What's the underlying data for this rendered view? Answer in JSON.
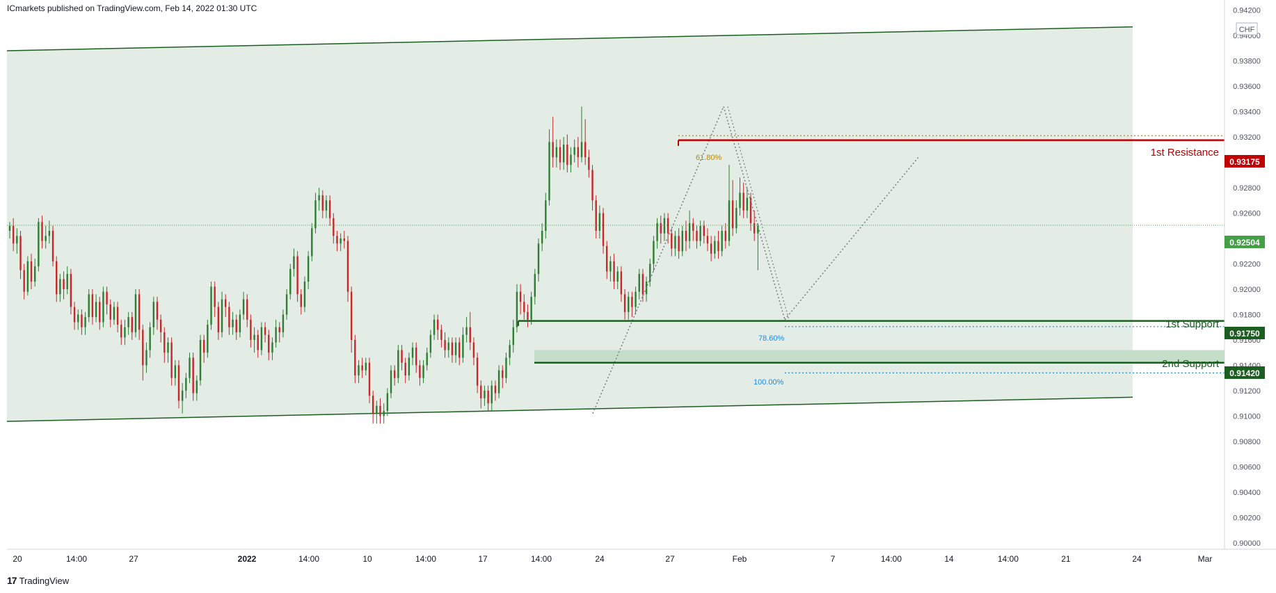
{
  "header": {
    "publisher": "ICmarkets published on TradingView.com, Feb 14, 2022 01:30 UTC"
  },
  "brand": {
    "name": "TradingView"
  },
  "colors": {
    "up": "#2e7d32",
    "down": "#c62828",
    "channel_fill": "#e3ece5",
    "channel_line": "#1b5e20",
    "resistance": "#c00000",
    "support": "#1b5e20",
    "fib": "#1e88e5",
    "fib_gold": "#b8860b"
  },
  "chart_data": {
    "type": "candlestick",
    "currency": "CHF",
    "ylim": [
      0.8995,
      0.9428
    ],
    "y_ticks": [
      "0.90000",
      "0.90200",
      "0.90400",
      "0.90600",
      "0.90800",
      "0.91000",
      "0.91200",
      "0.91400",
      "0.91600",
      "0.91800",
      "0.92000",
      "0.92200",
      "0.92400",
      "0.92600",
      "0.92800",
      "0.93000",
      "0.93200",
      "0.93400",
      "0.93600",
      "0.93800",
      "0.94000",
      "0.94200"
    ],
    "x_ticks": [
      "20",
      "14:00",
      "27",
      "2022",
      "14:00",
      "10",
      "14:00",
      "17",
      "14:00",
      "24",
      "27",
      "Feb",
      "7",
      "14:00",
      "14",
      "14:00",
      "21",
      "24",
      "Mar"
    ],
    "last_price": "0.92504",
    "levels": [
      {
        "label": "1st Resistance",
        "price": "0.93175",
        "kind": "resistance"
      },
      {
        "label": "1st Support",
        "price": "0.91750",
        "kind": "support"
      },
      {
        "label": "2nd Support",
        "price": "0.91420",
        "kind": "support"
      }
    ],
    "fib_labels": {
      "f618": "61.80%",
      "f786": "78.60%",
      "f100": "100.00%"
    },
    "candles": [
      [
        0.9246,
        0.925,
        0.924,
        0.9253
      ],
      [
        0.925,
        0.9236,
        0.923,
        0.9256
      ],
      [
        0.9236,
        0.9242,
        0.9228,
        0.9248
      ],
      [
        0.9242,
        0.9215,
        0.9208,
        0.9246
      ],
      [
        0.9215,
        0.9198,
        0.9192,
        0.922
      ],
      [
        0.9198,
        0.9222,
        0.9195,
        0.9226
      ],
      [
        0.9222,
        0.9206,
        0.92,
        0.9228
      ],
      [
        0.9206,
        0.9218,
        0.9202,
        0.9224
      ],
      [
        0.9218,
        0.9253,
        0.9214,
        0.9256
      ],
      [
        0.9253,
        0.9238,
        0.9232,
        0.9258
      ],
      [
        0.9238,
        0.9242,
        0.9232,
        0.925
      ],
      [
        0.9242,
        0.9246,
        0.9236,
        0.9254
      ],
      [
        0.9246,
        0.9222,
        0.9218,
        0.925
      ],
      [
        0.9222,
        0.9196,
        0.919,
        0.9226
      ],
      [
        0.9196,
        0.9208,
        0.919,
        0.9212
      ],
      [
        0.9208,
        0.92,
        0.9192,
        0.9214
      ],
      [
        0.92,
        0.9212,
        0.9196,
        0.9218
      ],
      [
        0.9212,
        0.9186,
        0.918,
        0.9216
      ],
      [
        0.9186,
        0.9174,
        0.9168,
        0.919
      ],
      [
        0.9174,
        0.918,
        0.9168,
        0.9184
      ],
      [
        0.918,
        0.917,
        0.9164,
        0.9184
      ],
      [
        0.917,
        0.9178,
        0.9164,
        0.9182
      ],
      [
        0.9178,
        0.9196,
        0.9174,
        0.92
      ],
      [
        0.9196,
        0.9178,
        0.9172,
        0.92
      ],
      [
        0.9178,
        0.919,
        0.9174,
        0.9196
      ],
      [
        0.919,
        0.9174,
        0.9168,
        0.9194
      ],
      [
        0.9174,
        0.9198,
        0.917,
        0.9202
      ],
      [
        0.9198,
        0.9188,
        0.918,
        0.9202
      ],
      [
        0.9188,
        0.9176,
        0.917,
        0.9192
      ],
      [
        0.9176,
        0.9186,
        0.9172,
        0.919
      ],
      [
        0.9186,
        0.9172,
        0.9166,
        0.919
      ],
      [
        0.9172,
        0.9162,
        0.9156,
        0.9176
      ],
      [
        0.9162,
        0.917,
        0.9156,
        0.9176
      ],
      [
        0.917,
        0.9178,
        0.9164,
        0.9182
      ],
      [
        0.9178,
        0.9166,
        0.916,
        0.9182
      ],
      [
        0.9166,
        0.9196,
        0.9162,
        0.92
      ],
      [
        0.9196,
        0.9168,
        0.916,
        0.92
      ],
      [
        0.9168,
        0.914,
        0.9128,
        0.9172
      ],
      [
        0.914,
        0.9152,
        0.9134,
        0.9158
      ],
      [
        0.9152,
        0.917,
        0.9146,
        0.9174
      ],
      [
        0.917,
        0.919,
        0.9164,
        0.9194
      ],
      [
        0.919,
        0.9176,
        0.9168,
        0.9194
      ],
      [
        0.9176,
        0.9166,
        0.9158,
        0.918
      ],
      [
        0.9166,
        0.915,
        0.9142,
        0.917
      ],
      [
        0.915,
        0.9158,
        0.9142,
        0.9162
      ],
      [
        0.9158,
        0.913,
        0.9124,
        0.9162
      ],
      [
        0.913,
        0.914,
        0.9124,
        0.9144
      ],
      [
        0.914,
        0.9112,
        0.9106,
        0.9144
      ],
      [
        0.9112,
        0.912,
        0.9102,
        0.9126
      ],
      [
        0.912,
        0.913,
        0.9114,
        0.9134
      ],
      [
        0.913,
        0.9146,
        0.9126,
        0.915
      ],
      [
        0.9146,
        0.9118,
        0.9112,
        0.915
      ],
      [
        0.9118,
        0.9128,
        0.9112,
        0.9132
      ],
      [
        0.9128,
        0.916,
        0.9124,
        0.9164
      ],
      [
        0.916,
        0.915,
        0.9142,
        0.9164
      ],
      [
        0.915,
        0.9172,
        0.9146,
        0.9176
      ],
      [
        0.9172,
        0.9202,
        0.9168,
        0.9206
      ],
      [
        0.9202,
        0.9186,
        0.9178,
        0.9206
      ],
      [
        0.9186,
        0.9166,
        0.916,
        0.919
      ],
      [
        0.9166,
        0.9192,
        0.9162,
        0.9198
      ],
      [
        0.9192,
        0.9186,
        0.9178,
        0.9196
      ],
      [
        0.9186,
        0.917,
        0.9164,
        0.919
      ],
      [
        0.917,
        0.9176,
        0.9164,
        0.9182
      ],
      [
        0.9176,
        0.9166,
        0.916,
        0.918
      ],
      [
        0.9166,
        0.918,
        0.9162,
        0.9184
      ],
      [
        0.918,
        0.9192,
        0.9176,
        0.9198
      ],
      [
        0.9192,
        0.9176,
        0.917,
        0.9196
      ],
      [
        0.9176,
        0.916,
        0.9154,
        0.918
      ],
      [
        0.916,
        0.9164,
        0.915,
        0.917
      ],
      [
        0.9164,
        0.9152,
        0.9146,
        0.9168
      ],
      [
        0.9152,
        0.917,
        0.9148,
        0.9174
      ],
      [
        0.917,
        0.9164,
        0.9158,
        0.9174
      ],
      [
        0.9164,
        0.915,
        0.9144,
        0.9168
      ],
      [
        0.915,
        0.9158,
        0.9144,
        0.9162
      ],
      [
        0.9158,
        0.917,
        0.9154,
        0.9176
      ],
      [
        0.917,
        0.9166,
        0.9158,
        0.9174
      ],
      [
        0.9166,
        0.918,
        0.9162,
        0.9184
      ],
      [
        0.918,
        0.9196,
        0.9176,
        0.92
      ],
      [
        0.9196,
        0.9216,
        0.9192,
        0.922
      ],
      [
        0.9216,
        0.9226,
        0.921,
        0.9232
      ],
      [
        0.9226,
        0.9196,
        0.919,
        0.923
      ],
      [
        0.9196,
        0.9186,
        0.918,
        0.92
      ],
      [
        0.9186,
        0.9206,
        0.9182,
        0.921
      ],
      [
        0.9206,
        0.9226,
        0.92,
        0.923
      ],
      [
        0.9226,
        0.9248,
        0.9222,
        0.9252
      ],
      [
        0.9248,
        0.927,
        0.9244,
        0.9276
      ],
      [
        0.927,
        0.9274,
        0.9262,
        0.928
      ],
      [
        0.9274,
        0.9262,
        0.9256,
        0.9278
      ],
      [
        0.9262,
        0.927,
        0.9256,
        0.9274
      ],
      [
        0.927,
        0.9256,
        0.925,
        0.9274
      ],
      [
        0.9256,
        0.9242,
        0.9236,
        0.926
      ],
      [
        0.9242,
        0.9236,
        0.923,
        0.9246
      ],
      [
        0.9236,
        0.924,
        0.923,
        0.9244
      ],
      [
        0.924,
        0.9238,
        0.9232,
        0.9246
      ],
      [
        0.9238,
        0.9198,
        0.919,
        0.9242
      ],
      [
        0.9198,
        0.916,
        0.915,
        0.9202
      ],
      [
        0.916,
        0.9132,
        0.9126,
        0.9164
      ],
      [
        0.9132,
        0.914,
        0.9126,
        0.9144
      ],
      [
        0.914,
        0.9136,
        0.913,
        0.9146
      ],
      [
        0.9136,
        0.9142,
        0.9132,
        0.9146
      ],
      [
        0.9142,
        0.9116,
        0.911,
        0.9146
      ],
      [
        0.9116,
        0.9102,
        0.9094,
        0.912
      ],
      [
        0.9102,
        0.9108,
        0.9094,
        0.9112
      ],
      [
        0.9108,
        0.91,
        0.9094,
        0.9114
      ],
      [
        0.91,
        0.9104,
        0.9094,
        0.911
      ],
      [
        0.9104,
        0.9118,
        0.91,
        0.9122
      ],
      [
        0.9118,
        0.9136,
        0.9114,
        0.914
      ],
      [
        0.9136,
        0.913,
        0.9124,
        0.914
      ],
      [
        0.913,
        0.9152,
        0.9126,
        0.9156
      ],
      [
        0.9152,
        0.9142,
        0.9136,
        0.9156
      ],
      [
        0.9142,
        0.9132,
        0.9126,
        0.9146
      ],
      [
        0.9132,
        0.9146,
        0.9128,
        0.915
      ],
      [
        0.9146,
        0.9154,
        0.914,
        0.9158
      ],
      [
        0.9154,
        0.914,
        0.9134,
        0.9158
      ],
      [
        0.914,
        0.913,
        0.9124,
        0.9144
      ],
      [
        0.913,
        0.914,
        0.9126,
        0.9144
      ],
      [
        0.914,
        0.915,
        0.9136,
        0.9154
      ],
      [
        0.915,
        0.9164,
        0.9146,
        0.9168
      ],
      [
        0.9164,
        0.9176,
        0.916,
        0.918
      ],
      [
        0.9176,
        0.9168,
        0.916,
        0.918
      ],
      [
        0.9168,
        0.916,
        0.9154,
        0.9172
      ],
      [
        0.916,
        0.9152,
        0.9146,
        0.9166
      ],
      [
        0.9152,
        0.9158,
        0.9146,
        0.9162
      ],
      [
        0.9158,
        0.9148,
        0.9142,
        0.9162
      ],
      [
        0.9148,
        0.9158,
        0.9142,
        0.9162
      ],
      [
        0.9158,
        0.9146,
        0.914,
        0.9162
      ],
      [
        0.9146,
        0.9164,
        0.9142,
        0.917
      ],
      [
        0.9164,
        0.917,
        0.9158,
        0.9178
      ],
      [
        0.917,
        0.9158,
        0.9152,
        0.9182
      ],
      [
        0.9158,
        0.9146,
        0.914,
        0.9162
      ],
      [
        0.9146,
        0.9124,
        0.9118,
        0.915
      ],
      [
        0.9124,
        0.9114,
        0.9106,
        0.9128
      ],
      [
        0.9114,
        0.912,
        0.9108,
        0.9124
      ],
      [
        0.912,
        0.911,
        0.9104,
        0.9124
      ],
      [
        0.911,
        0.9124,
        0.9104,
        0.9128
      ],
      [
        0.9124,
        0.9118,
        0.9112,
        0.9128
      ],
      [
        0.9118,
        0.9136,
        0.9114,
        0.914
      ],
      [
        0.9136,
        0.913,
        0.9122,
        0.914
      ],
      [
        0.913,
        0.9146,
        0.9126,
        0.915
      ],
      [
        0.9146,
        0.9156,
        0.914,
        0.916
      ],
      [
        0.9156,
        0.917,
        0.915,
        0.9176
      ],
      [
        0.917,
        0.9198,
        0.9166,
        0.9204
      ],
      [
        0.9198,
        0.919,
        0.918,
        0.9204
      ],
      [
        0.919,
        0.9182,
        0.9176,
        0.9196
      ],
      [
        0.9182,
        0.9176,
        0.917,
        0.9188
      ],
      [
        0.9176,
        0.9194,
        0.9172,
        0.9198
      ],
      [
        0.9194,
        0.9212,
        0.9188,
        0.9216
      ],
      [
        0.9212,
        0.9236,
        0.9206,
        0.924
      ],
      [
        0.9236,
        0.9246,
        0.923,
        0.9252
      ],
      [
        0.9246,
        0.927,
        0.924,
        0.9276
      ],
      [
        0.927,
        0.9316,
        0.9266,
        0.9326
      ],
      [
        0.9316,
        0.9304,
        0.9296,
        0.9336
      ],
      [
        0.9304,
        0.9312,
        0.9296,
        0.9318
      ],
      [
        0.9312,
        0.93,
        0.9294,
        0.9318
      ],
      [
        0.93,
        0.9314,
        0.9294,
        0.932
      ],
      [
        0.9314,
        0.9298,
        0.9292,
        0.9322
      ],
      [
        0.9298,
        0.9306,
        0.9292,
        0.9312
      ],
      [
        0.9306,
        0.9312,
        0.93,
        0.9318
      ],
      [
        0.9312,
        0.9304,
        0.9296,
        0.932
      ],
      [
        0.9304,
        0.9316,
        0.93,
        0.9344
      ],
      [
        0.9316,
        0.9304,
        0.9298,
        0.9334
      ],
      [
        0.9304,
        0.9294,
        0.9288,
        0.931
      ],
      [
        0.9294,
        0.927,
        0.9262,
        0.9298
      ],
      [
        0.927,
        0.9246,
        0.924,
        0.9274
      ],
      [
        0.9246,
        0.926,
        0.924,
        0.9266
      ],
      [
        0.926,
        0.9234,
        0.9228,
        0.9264
      ],
      [
        0.9234,
        0.9214,
        0.9208,
        0.9238
      ],
      [
        0.9214,
        0.9222,
        0.9206,
        0.9226
      ],
      [
        0.9222,
        0.9206,
        0.92,
        0.9228
      ],
      [
        0.9206,
        0.9214,
        0.92,
        0.9218
      ],
      [
        0.9214,
        0.9196,
        0.919,
        0.9218
      ],
      [
        0.9196,
        0.9182,
        0.9176,
        0.92
      ],
      [
        0.9182,
        0.9194,
        0.9176,
        0.9198
      ],
      [
        0.9194,
        0.9186,
        0.9178,
        0.9198
      ],
      [
        0.9186,
        0.9198,
        0.918,
        0.9202
      ],
      [
        0.9198,
        0.9212,
        0.9192,
        0.9216
      ],
      [
        0.9212,
        0.9196,
        0.919,
        0.9216
      ],
      [
        0.9196,
        0.9206,
        0.919,
        0.921
      ],
      [
        0.9206,
        0.922,
        0.9202,
        0.9224
      ],
      [
        0.922,
        0.9238,
        0.9214,
        0.9242
      ],
      [
        0.9238,
        0.9252,
        0.9232,
        0.9256
      ],
      [
        0.9252,
        0.9244,
        0.9236,
        0.9258
      ],
      [
        0.9244,
        0.9256,
        0.9238,
        0.926
      ],
      [
        0.9256,
        0.9244,
        0.9236,
        0.926
      ],
      [
        0.9244,
        0.9232,
        0.9226,
        0.9248
      ],
      [
        0.9232,
        0.9242,
        0.9226,
        0.9246
      ],
      [
        0.9242,
        0.923,
        0.9224,
        0.9248
      ],
      [
        0.923,
        0.9246,
        0.9226,
        0.925
      ],
      [
        0.9246,
        0.9238,
        0.923,
        0.9254
      ],
      [
        0.9238,
        0.9252,
        0.9232,
        0.9262
      ],
      [
        0.9252,
        0.9246,
        0.9238,
        0.9256
      ],
      [
        0.9246,
        0.9238,
        0.9232,
        0.925
      ],
      [
        0.9238,
        0.925,
        0.9234,
        0.9254
      ],
      [
        0.925,
        0.9242,
        0.9236,
        0.9254
      ],
      [
        0.9242,
        0.9236,
        0.923,
        0.9248
      ],
      [
        0.9236,
        0.9228,
        0.9222,
        0.9242
      ],
      [
        0.9228,
        0.9238,
        0.9224,
        0.9242
      ],
      [
        0.9238,
        0.923,
        0.9224,
        0.9246
      ],
      [
        0.923,
        0.9246,
        0.9226,
        0.925
      ],
      [
        0.9246,
        0.9238,
        0.9232,
        0.9252
      ],
      [
        0.9238,
        0.927,
        0.9234,
        0.9298
      ],
      [
        0.927,
        0.9248,
        0.9242,
        0.9286
      ],
      [
        0.9248,
        0.9264,
        0.9244,
        0.927
      ],
      [
        0.9264,
        0.9276,
        0.9258,
        0.9288
      ],
      [
        0.9276,
        0.9262,
        0.9256,
        0.9284
      ],
      [
        0.9262,
        0.9272,
        0.9256,
        0.928
      ],
      [
        0.9272,
        0.9252,
        0.9246,
        0.9276
      ],
      [
        0.9252,
        0.9244,
        0.9238,
        0.9262
      ],
      [
        0.9244,
        0.925,
        0.9215,
        0.9252
      ]
    ]
  }
}
